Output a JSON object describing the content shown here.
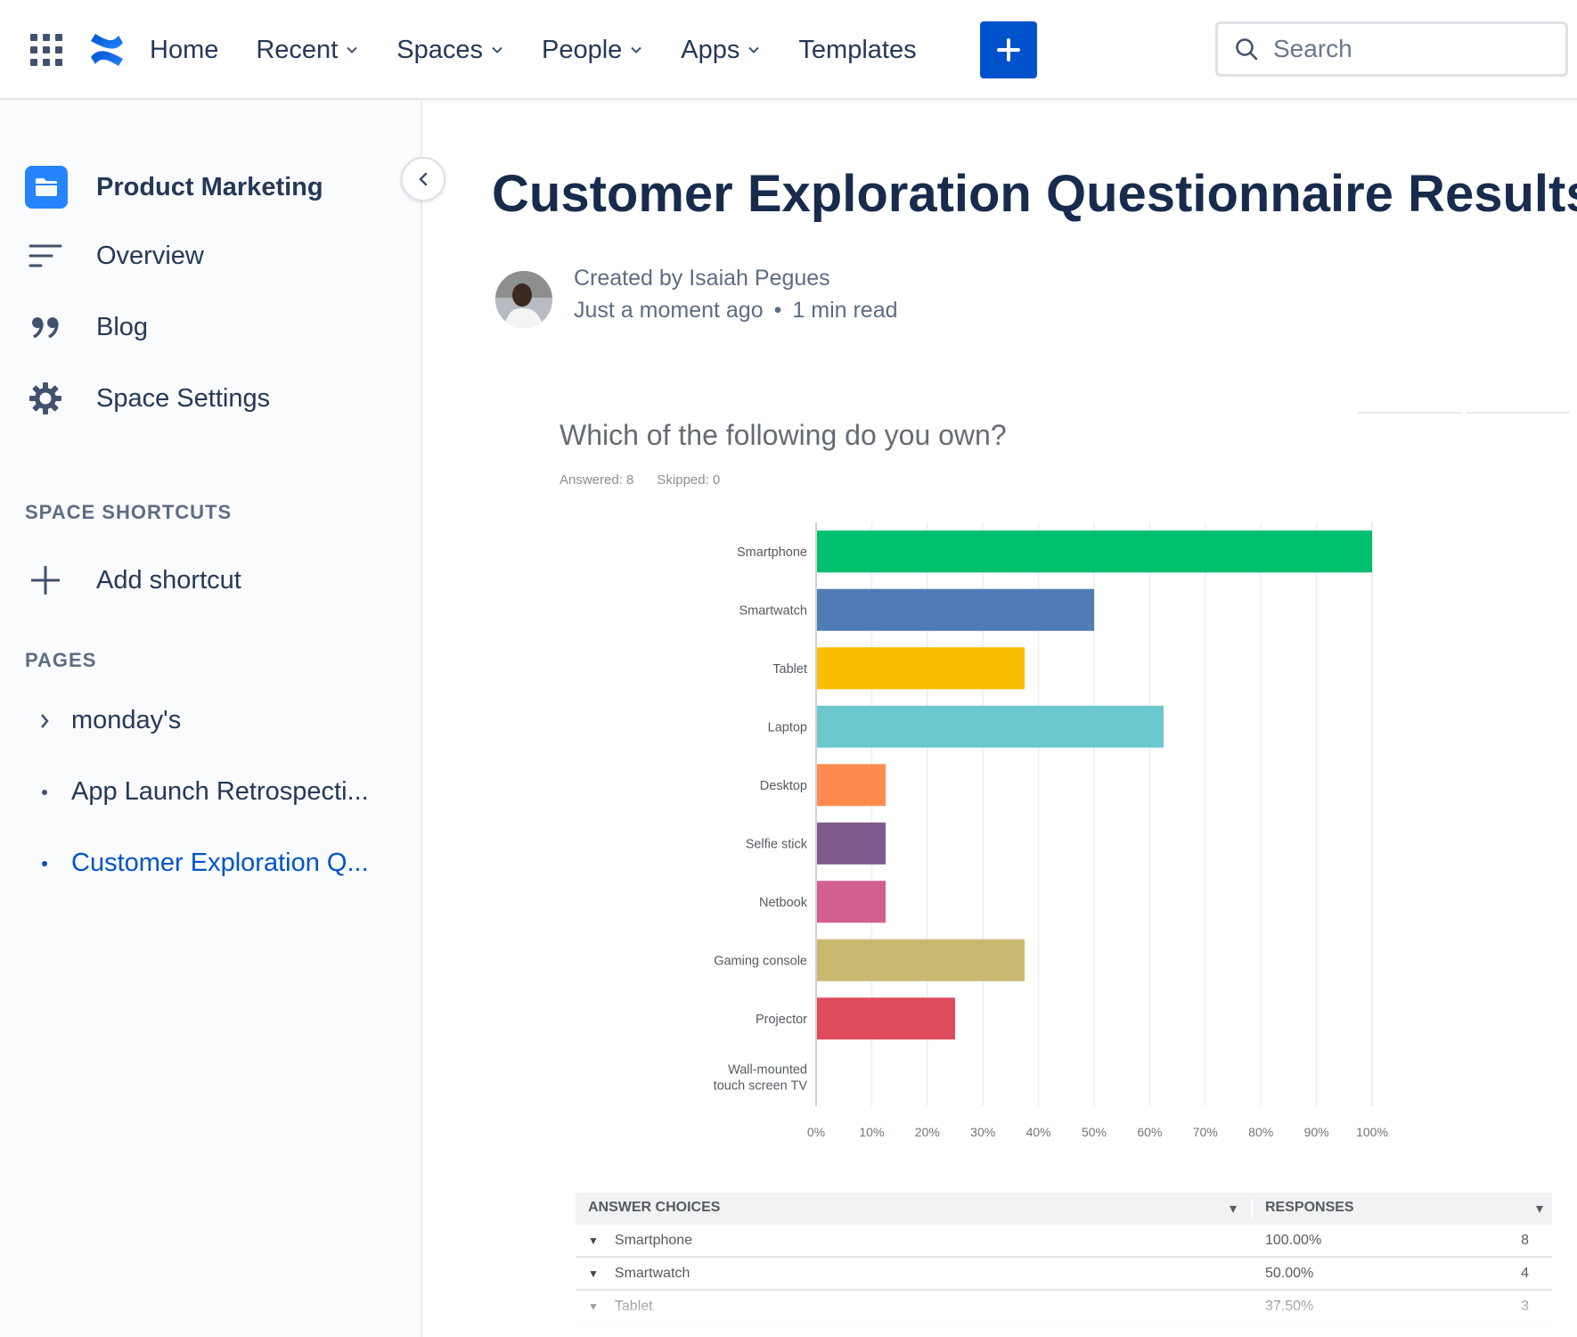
{
  "nav": {
    "items": [
      {
        "label": "Home",
        "dropdown": false
      },
      {
        "label": "Recent",
        "dropdown": true
      },
      {
        "label": "Spaces",
        "dropdown": true
      },
      {
        "label": "People",
        "dropdown": true
      },
      {
        "label": "Apps",
        "dropdown": true
      },
      {
        "label": "Templates",
        "dropdown": false
      }
    ],
    "search_placeholder": "Search",
    "accent": "#0052cc"
  },
  "sidebar": {
    "space_name": "Product Marketing",
    "links": [
      {
        "label": "Overview",
        "icon": "overview-icon"
      },
      {
        "label": "Blog",
        "icon": "quote-icon"
      },
      {
        "label": "Space Settings",
        "icon": "gear-icon"
      }
    ],
    "shortcuts_title": "SPACE SHORTCUTS",
    "add_shortcut": "Add shortcut",
    "pages_title": "PAGES",
    "pages": [
      {
        "label": "monday's",
        "marker": "chevron",
        "active": false
      },
      {
        "label": "App Launch Retrospecti...",
        "marker": "dot",
        "active": false
      },
      {
        "label": "Customer Exploration Q...",
        "marker": "dot",
        "active": true
      }
    ]
  },
  "page": {
    "title": "Customer Exploration Questionnaire Results",
    "created_by": "Created by Isaiah Pegues",
    "time": "Just a moment ago",
    "separator": "•",
    "read_time": "1 min read"
  },
  "survey": {
    "question": "Which of the following do you own?",
    "answered": "Answered: 8",
    "skipped": "Skipped: 0"
  },
  "chart_data": {
    "type": "bar",
    "orientation": "horizontal",
    "categories": [
      "Smartphone",
      "Smartwatch",
      "Tablet",
      "Laptop",
      "Desktop",
      "Selfie stick",
      "Netbook",
      "Gaming console",
      "Projector",
      "Wall-mounted touch screen TV"
    ],
    "values": [
      100,
      50,
      37.5,
      62.5,
      12.5,
      12.5,
      12.5,
      37.5,
      25,
      0
    ],
    "colors": [
      "#00bf6f",
      "#507cb6",
      "#f9be00",
      "#6bc8cd",
      "#ff8b4f",
      "#7f5a8f",
      "#d25f90",
      "#c9b870",
      "#de4b5c",
      "#9a9a9a"
    ],
    "xlim": [
      0,
      100
    ],
    "x_ticks": [
      "0%",
      "10%",
      "20%",
      "30%",
      "40%",
      "50%",
      "60%",
      "70%",
      "80%",
      "90%",
      "100%"
    ],
    "grid": true
  },
  "results_table": {
    "headers": [
      "ANSWER CHOICES",
      "RESPONSES"
    ],
    "rows": [
      {
        "choice": "Smartphone",
        "percent": "100.00%",
        "count": "8"
      },
      {
        "choice": "Smartwatch",
        "percent": "50.00%",
        "count": "4"
      },
      {
        "choice": "Tablet",
        "percent": "37.50%",
        "count": "3"
      }
    ]
  }
}
